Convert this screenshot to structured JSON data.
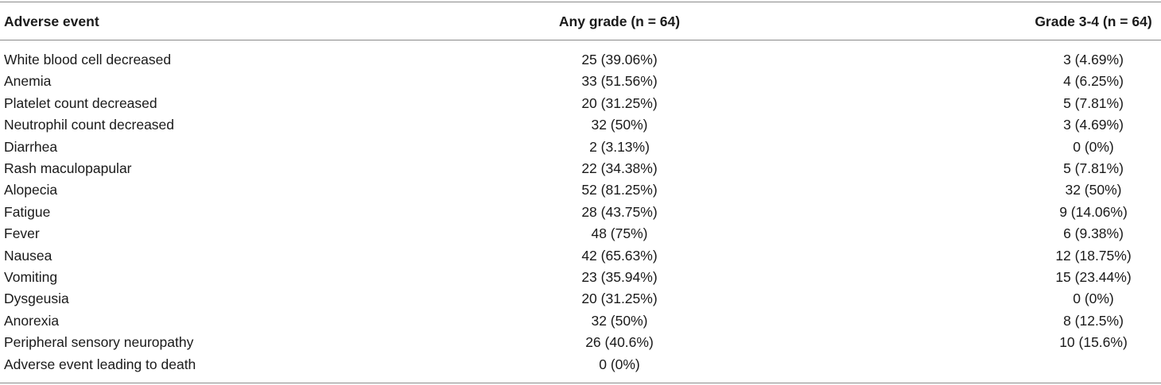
{
  "table": {
    "header": [
      "Adverse event",
      "Any grade (n = 64)",
      "Grade 3-4 (n = 64)"
    ],
    "rows": [
      [
        "White blood cell decreased",
        "25 (39.06%)",
        "3 (4.69%)"
      ],
      [
        "Anemia",
        "33 (51.56%)",
        "4 (6.25%)"
      ],
      [
        "Platelet count decreased",
        "20 (31.25%)",
        "5 (7.81%)"
      ],
      [
        "Neutrophil count decreased",
        "32 (50%)",
        "3 (4.69%)"
      ],
      [
        "Diarrhea",
        "2 (3.13%)",
        "0 (0%)"
      ],
      [
        "Rash maculopapular",
        "22 (34.38%)",
        "5 (7.81%)"
      ],
      [
        "Alopecia",
        "52 (81.25%)",
        "32 (50%)"
      ],
      [
        "Fatigue",
        "28 (43.75%)",
        "9 (14.06%)"
      ],
      [
        "Fever",
        "48 (75%)",
        "6 (9.38%)"
      ],
      [
        "Nausea",
        "42 (65.63%)",
        "12 (18.75%)"
      ],
      [
        "Vomiting",
        "23 (35.94%)",
        "15 (23.44%)"
      ],
      [
        "Dysgeusia",
        "20 (31.25%)",
        "0 (0%)"
      ],
      [
        "Anorexia",
        "32 (50%)",
        "8 (12.5%)"
      ],
      [
        "Peripheral sensory neuropathy",
        "26 (40.6%)",
        "10 (15.6%)"
      ],
      [
        "Adverse event leading to death",
        "0 (0%)",
        null
      ]
    ]
  }
}
